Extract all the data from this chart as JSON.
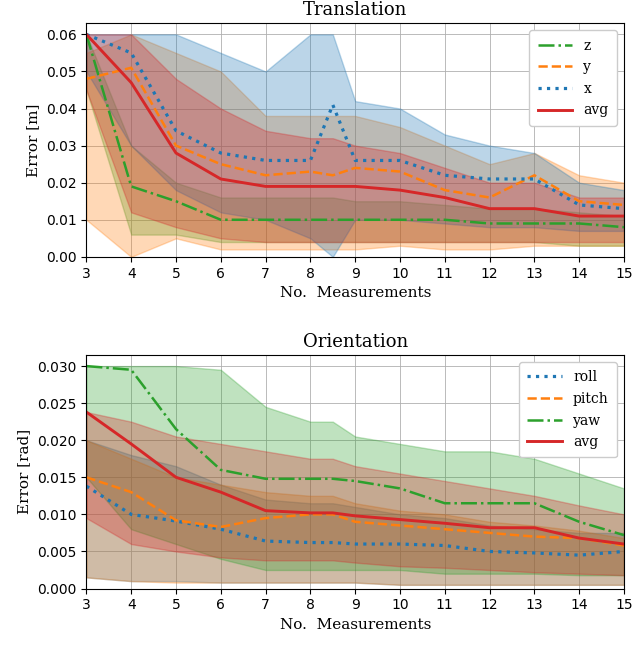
{
  "x": [
    3,
    4,
    5,
    6,
    7,
    8,
    8.5,
    9,
    10,
    11,
    12,
    13,
    14,
    15
  ],
  "trans_x_mean": [
    0.06,
    0.055,
    0.034,
    0.028,
    0.026,
    0.026,
    0.041,
    0.026,
    0.026,
    0.022,
    0.021,
    0.021,
    0.014,
    0.013
  ],
  "trans_x_lo": [
    0.05,
    0.03,
    0.018,
    0.012,
    0.01,
    0.005,
    0.0,
    0.01,
    0.01,
    0.009,
    0.008,
    0.008,
    0.007,
    0.007
  ],
  "trans_x_hi": [
    0.06,
    0.06,
    0.06,
    0.055,
    0.05,
    0.06,
    0.06,
    0.042,
    0.04,
    0.033,
    0.03,
    0.028,
    0.02,
    0.018
  ],
  "trans_y_mean": [
    0.048,
    0.051,
    0.03,
    0.025,
    0.022,
    0.023,
    0.022,
    0.024,
    0.023,
    0.018,
    0.016,
    0.022,
    0.015,
    0.014
  ],
  "trans_y_lo": [
    0.01,
    0.0,
    0.005,
    0.002,
    0.002,
    0.002,
    0.002,
    0.002,
    0.003,
    0.002,
    0.002,
    0.003,
    0.003,
    0.003
  ],
  "trans_y_hi": [
    0.055,
    0.06,
    0.055,
    0.05,
    0.038,
    0.038,
    0.038,
    0.038,
    0.035,
    0.03,
    0.025,
    0.028,
    0.022,
    0.02
  ],
  "trans_z_mean": [
    0.06,
    0.019,
    0.015,
    0.01,
    0.01,
    0.01,
    0.01,
    0.01,
    0.01,
    0.01,
    0.009,
    0.009,
    0.009,
    0.008
  ],
  "trans_z_lo": [
    0.045,
    0.006,
    0.006,
    0.004,
    0.004,
    0.004,
    0.004,
    0.004,
    0.004,
    0.004,
    0.004,
    0.004,
    0.003,
    0.003
  ],
  "trans_z_hi": [
    0.06,
    0.03,
    0.02,
    0.016,
    0.016,
    0.016,
    0.016,
    0.015,
    0.015,
    0.014,
    0.013,
    0.013,
    0.012,
    0.011
  ],
  "trans_avg_mean": [
    0.06,
    0.047,
    0.028,
    0.021,
    0.019,
    0.019,
    0.019,
    0.019,
    0.018,
    0.016,
    0.013,
    0.013,
    0.011,
    0.011
  ],
  "trans_avg_lo": [
    0.045,
    0.012,
    0.008,
    0.005,
    0.004,
    0.004,
    0.004,
    0.004,
    0.004,
    0.004,
    0.004,
    0.004,
    0.004,
    0.004
  ],
  "trans_avg_hi": [
    0.06,
    0.06,
    0.048,
    0.04,
    0.034,
    0.032,
    0.032,
    0.03,
    0.028,
    0.024,
    0.02,
    0.02,
    0.016,
    0.016
  ],
  "orient_roll_mean": [
    0.0138,
    0.01,
    0.0091,
    0.008,
    0.0064,
    0.0062,
    0.0062,
    0.006,
    0.006,
    0.0058,
    0.005,
    0.0048,
    0.0045,
    0.005
  ],
  "orient_roll_lo": [
    0.0015,
    0.001,
    0.001,
    0.0008,
    0.0008,
    0.0008,
    0.0008,
    0.0008,
    0.0005,
    0.0005,
    0.0005,
    0.0005,
    0.0005,
    0.0005
  ],
  "orient_roll_hi": [
    0.02,
    0.018,
    0.0165,
    0.014,
    0.012,
    0.0115,
    0.0115,
    0.011,
    0.01,
    0.0095,
    0.0085,
    0.008,
    0.0075,
    0.0075
  ],
  "orient_pitch_mean": [
    0.015,
    0.013,
    0.0092,
    0.0083,
    0.0095,
    0.01,
    0.01,
    0.009,
    0.0085,
    0.008,
    0.0075,
    0.007,
    0.0068,
    0.0058
  ],
  "orient_pitch_lo": [
    0.0015,
    0.001,
    0.0008,
    0.0008,
    0.0008,
    0.0008,
    0.0008,
    0.0008,
    0.0005,
    0.0005,
    0.0005,
    0.0005,
    0.0005,
    0.0005
  ],
  "orient_pitch_hi": [
    0.02,
    0.0175,
    0.015,
    0.014,
    0.013,
    0.0125,
    0.0125,
    0.0115,
    0.0105,
    0.01,
    0.009,
    0.0085,
    0.0078,
    0.0068
  ],
  "orient_yaw_mean": [
    0.03,
    0.0295,
    0.0215,
    0.016,
    0.0148,
    0.0148,
    0.0148,
    0.0145,
    0.0135,
    0.0115,
    0.0115,
    0.0115,
    0.009,
    0.0072
  ],
  "orient_yaw_lo": [
    0.015,
    0.008,
    0.006,
    0.004,
    0.0025,
    0.0025,
    0.0025,
    0.0025,
    0.0025,
    0.002,
    0.002,
    0.002,
    0.0018,
    0.0018
  ],
  "orient_yaw_hi": [
    0.03,
    0.03,
    0.03,
    0.0295,
    0.0245,
    0.0225,
    0.0225,
    0.0205,
    0.0195,
    0.0185,
    0.0185,
    0.0175,
    0.0155,
    0.0135
  ],
  "orient_avg_mean": [
    0.0238,
    0.0195,
    0.015,
    0.013,
    0.0105,
    0.0102,
    0.0102,
    0.0098,
    0.0093,
    0.0088,
    0.0082,
    0.0082,
    0.0068,
    0.006
  ],
  "orient_avg_lo": [
    0.0095,
    0.006,
    0.005,
    0.0042,
    0.0038,
    0.0038,
    0.0038,
    0.0035,
    0.003,
    0.0028,
    0.0025,
    0.0022,
    0.002,
    0.0018
  ],
  "orient_avg_hi": [
    0.0238,
    0.0225,
    0.0205,
    0.0195,
    0.0185,
    0.0175,
    0.0175,
    0.0165,
    0.0155,
    0.0145,
    0.0135,
    0.0125,
    0.0112,
    0.01
  ],
  "color_blue": "#1f77b4",
  "color_orange": "#ff7f0e",
  "color_green": "#2ca02c",
  "color_red": "#d62728",
  "trans_title": "Translation",
  "orient_title": "Orientation",
  "xlabel": "No.  Measurements",
  "trans_ylabel": "Error [m]",
  "orient_ylabel": "Error [rad]",
  "trans_ylim": [
    0.0,
    0.063
  ],
  "orient_ylim": [
    0.0,
    0.0315
  ],
  "trans_yticks": [
    0.0,
    0.01,
    0.02,
    0.03,
    0.04,
    0.05,
    0.06
  ],
  "orient_yticks": [
    0.0,
    0.005,
    0.01,
    0.015,
    0.02,
    0.025,
    0.03
  ],
  "xticks": [
    3,
    4,
    5,
    6,
    7,
    8,
    9,
    10,
    11,
    12,
    13,
    14,
    15
  ],
  "alpha_fill": 0.3,
  "lw": 1.8
}
